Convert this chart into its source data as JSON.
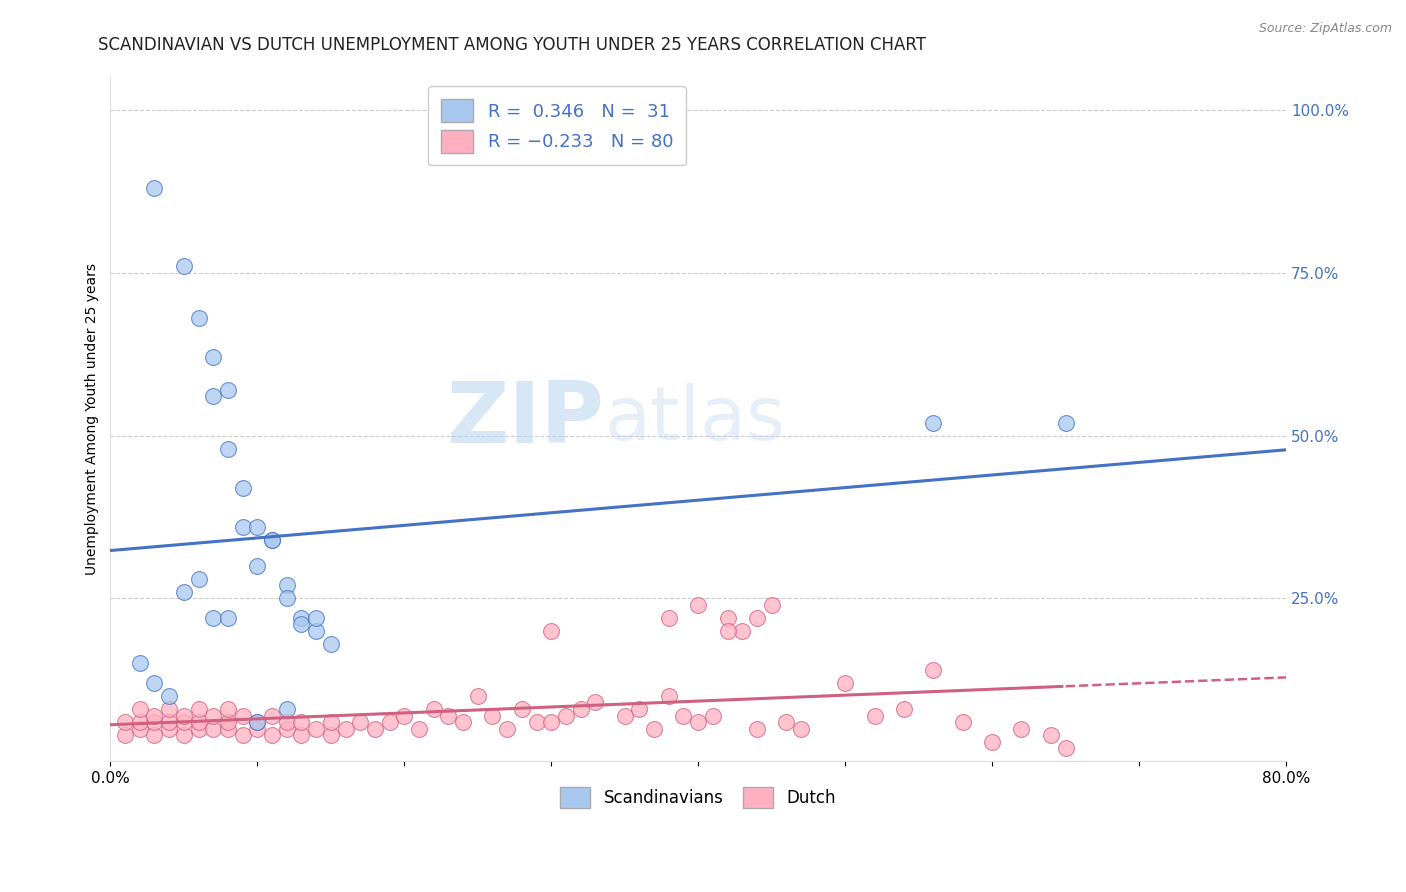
{
  "title": "SCANDINAVIAN VS DUTCH UNEMPLOYMENT AMONG YOUTH UNDER 25 YEARS CORRELATION CHART",
  "source": "Source: ZipAtlas.com",
  "ylabel": "Unemployment Among Youth under 25 years",
  "xlim": [
    0.0,
    0.8
  ],
  "ylim": [
    0.0,
    1.05
  ],
  "xticks": [
    0.0,
    0.1,
    0.2,
    0.3,
    0.4,
    0.5,
    0.6,
    0.7,
    0.8
  ],
  "xticklabels": [
    "0.0%",
    "",
    "",
    "",
    "",
    "",
    "",
    "",
    "80.0%"
  ],
  "yticks_right": [
    0.0,
    0.25,
    0.5,
    0.75,
    1.0
  ],
  "yticklabels_right": [
    "",
    "25.0%",
    "50.0%",
    "75.0%",
    "100.0%"
  ],
  "scand_R": 0.346,
  "scand_N": 31,
  "dutch_R": -0.233,
  "dutch_N": 80,
  "scand_color": "#A8C8F0",
  "dutch_color": "#FFB0C0",
  "scand_line_color": "#4472C4",
  "dutch_line_color": "#D06080",
  "background_color": "#FFFFFF",
  "watermark": "ZIPAtlas",
  "watermark_color": "#C8DDEF",
  "title_fontsize": 12,
  "scand_x": [
    0.03,
    0.05,
    0.06,
    0.07,
    0.07,
    0.08,
    0.08,
    0.09,
    0.09,
    0.1,
    0.1,
    0.11,
    0.11,
    0.12,
    0.12,
    0.13,
    0.13,
    0.14,
    0.14,
    0.15,
    0.02,
    0.03,
    0.04,
    0.05,
    0.06,
    0.07,
    0.08,
    0.1,
    0.12,
    0.56,
    0.65
  ],
  "scand_y": [
    0.88,
    0.76,
    0.68,
    0.62,
    0.56,
    0.57,
    0.48,
    0.42,
    0.36,
    0.36,
    0.3,
    0.34,
    0.34,
    0.27,
    0.25,
    0.22,
    0.21,
    0.2,
    0.22,
    0.18,
    0.15,
    0.12,
    0.1,
    0.26,
    0.28,
    0.22,
    0.22,
    0.06,
    0.08,
    0.52,
    0.52
  ],
  "dutch_x": [
    0.01,
    0.01,
    0.02,
    0.02,
    0.02,
    0.03,
    0.03,
    0.03,
    0.04,
    0.04,
    0.04,
    0.05,
    0.05,
    0.05,
    0.06,
    0.06,
    0.06,
    0.07,
    0.07,
    0.08,
    0.08,
    0.08,
    0.09,
    0.09,
    0.1,
    0.1,
    0.11,
    0.11,
    0.12,
    0.12,
    0.13,
    0.13,
    0.14,
    0.15,
    0.15,
    0.16,
    0.17,
    0.18,
    0.19,
    0.2,
    0.21,
    0.22,
    0.23,
    0.24,
    0.25,
    0.26,
    0.27,
    0.28,
    0.29,
    0.3,
    0.31,
    0.32,
    0.33,
    0.35,
    0.36,
    0.37,
    0.38,
    0.39,
    0.4,
    0.41,
    0.42,
    0.43,
    0.44,
    0.45,
    0.46,
    0.47,
    0.5,
    0.52,
    0.54,
    0.56,
    0.58,
    0.6,
    0.62,
    0.64,
    0.65,
    0.38,
    0.4,
    0.42,
    0.44,
    0.3
  ],
  "dutch_y": [
    0.04,
    0.06,
    0.05,
    0.06,
    0.08,
    0.04,
    0.06,
    0.07,
    0.05,
    0.06,
    0.08,
    0.04,
    0.06,
    0.07,
    0.05,
    0.06,
    0.08,
    0.05,
    0.07,
    0.05,
    0.06,
    0.08,
    0.04,
    0.07,
    0.05,
    0.06,
    0.04,
    0.07,
    0.05,
    0.06,
    0.04,
    0.06,
    0.05,
    0.04,
    0.06,
    0.05,
    0.06,
    0.05,
    0.06,
    0.07,
    0.05,
    0.08,
    0.07,
    0.06,
    0.1,
    0.07,
    0.05,
    0.08,
    0.06,
    0.06,
    0.07,
    0.08,
    0.09,
    0.07,
    0.08,
    0.05,
    0.1,
    0.07,
    0.06,
    0.07,
    0.22,
    0.2,
    0.05,
    0.24,
    0.06,
    0.05,
    0.12,
    0.07,
    0.08,
    0.14,
    0.06,
    0.03,
    0.05,
    0.04,
    0.02,
    0.22,
    0.24,
    0.2,
    0.22,
    0.2
  ]
}
